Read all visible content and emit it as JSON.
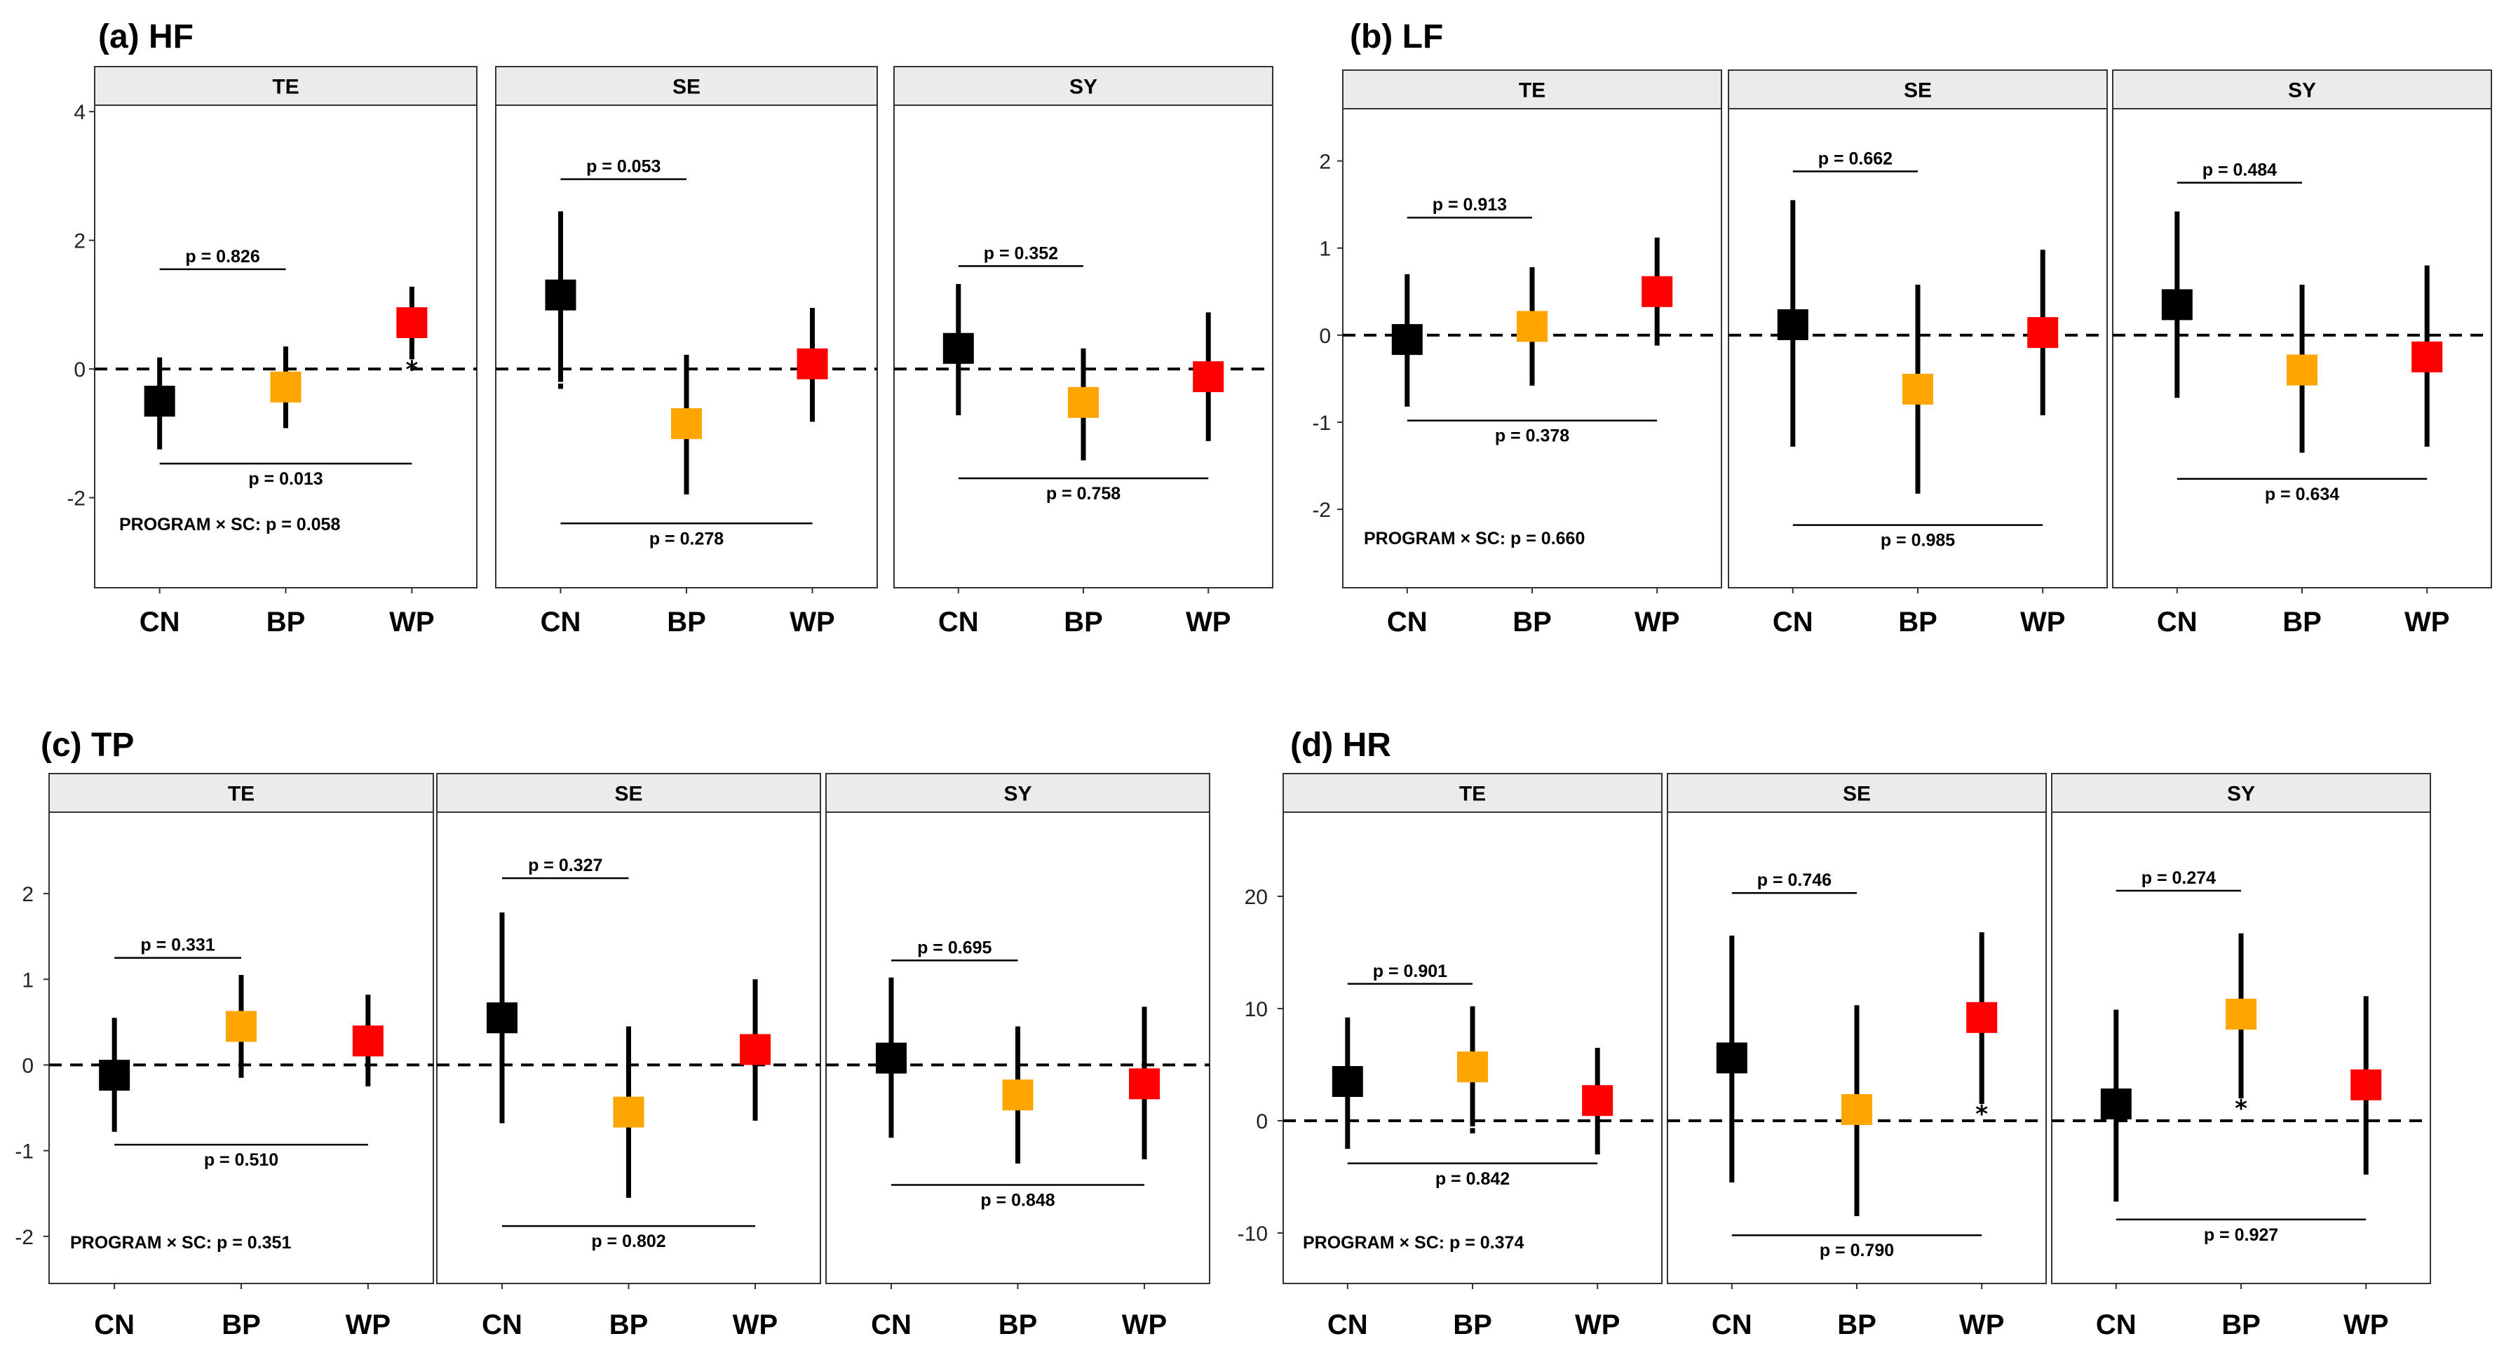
{
  "colors": {
    "CN": "#000000",
    "BP": "#FFA500",
    "WP": "#FF0000",
    "strip_bg": "#EBEBEB",
    "frame": "#333333",
    "zero_line": "#000000"
  },
  "chart_data": [
    {
      "type": "scatter",
      "label": "(a) HF",
      "categories": [
        "CN",
        "BP",
        "WP"
      ],
      "ylim": [
        -3.4,
        4.1
      ],
      "yticks": [
        -2,
        0,
        2,
        4
      ],
      "tick_labels": [
        "-2",
        "0",
        "2",
        "4"
      ],
      "interaction_text": "PROGRAM × SC: p = 0.058",
      "panels": [
        {
          "title": "TE",
          "groups": [
            {
              "name": "CN",
              "mean": -0.5,
              "lower": -1.25,
              "upper": 0.18,
              "marker": ""
            },
            {
              "name": "BP",
              "mean": -0.28,
              "lower": -0.92,
              "upper": 0.35,
              "marker": ""
            },
            {
              "name": "WP",
              "mean": 0.72,
              "lower": 0.15,
              "upper": 1.28,
              "marker": "*"
            }
          ],
          "top_bracket": {
            "value": 1.55,
            "text": "p = 0.826"
          },
          "bottom_bracket": {
            "value": -1.47,
            "text": "p = 0.013"
          }
        },
        {
          "title": "SE",
          "groups": [
            {
              "name": "CN",
              "mean": 1.15,
              "lower": -0.2,
              "upper": 2.45,
              "marker": "·"
            },
            {
              "name": "BP",
              "mean": -0.85,
              "lower": -1.95,
              "upper": 0.22,
              "marker": ""
            },
            {
              "name": "WP",
              "mean": 0.08,
              "lower": -0.82,
              "upper": 0.95,
              "marker": ""
            }
          ],
          "top_bracket": {
            "value": 2.95,
            "text": "p = 0.053"
          },
          "bottom_bracket": {
            "value": -2.4,
            "text": "p = 0.278"
          }
        },
        {
          "title": "SY",
          "groups": [
            {
              "name": "CN",
              "mean": 0.32,
              "lower": -0.72,
              "upper": 1.32,
              "marker": ""
            },
            {
              "name": "BP",
              "mean": -0.52,
              "lower": -1.42,
              "upper": 0.32,
              "marker": ""
            },
            {
              "name": "WP",
              "mean": -0.12,
              "lower": -1.12,
              "upper": 0.88,
              "marker": ""
            }
          ],
          "top_bracket": {
            "value": 1.6,
            "text": "p = 0.352"
          },
          "bottom_bracket": {
            "value": -1.7,
            "text": "p = 0.758"
          }
        }
      ]
    },
    {
      "type": "scatter",
      "label": "(b) LF",
      "categories": [
        "CN",
        "BP",
        "WP"
      ],
      "ylim": [
        -2.9,
        2.6
      ],
      "yticks": [
        -2,
        -1,
        0,
        1,
        2
      ],
      "tick_labels": [
        "-2",
        "-1",
        "0",
        "1",
        "2"
      ],
      "interaction_text": "PROGRAM × SC: p = 0.660",
      "panels": [
        {
          "title": "TE",
          "groups": [
            {
              "name": "CN",
              "mean": -0.05,
              "lower": -0.82,
              "upper": 0.7,
              "marker": ""
            },
            {
              "name": "BP",
              "mean": 0.1,
              "lower": -0.58,
              "upper": 0.78,
              "marker": ""
            },
            {
              "name": "WP",
              "mean": 0.5,
              "lower": -0.12,
              "upper": 1.12,
              "marker": ""
            }
          ],
          "top_bracket": {
            "value": 1.35,
            "text": "p = 0.913"
          },
          "bottom_bracket": {
            "value": -0.98,
            "text": "p = 0.378"
          }
        },
        {
          "title": "SE",
          "groups": [
            {
              "name": "CN",
              "mean": 0.12,
              "lower": -1.28,
              "upper": 1.55,
              "marker": ""
            },
            {
              "name": "BP",
              "mean": -0.62,
              "lower": -1.82,
              "upper": 0.58,
              "marker": ""
            },
            {
              "name": "WP",
              "mean": 0.03,
              "lower": -0.92,
              "upper": 0.98,
              "marker": ""
            }
          ],
          "top_bracket": {
            "value": 1.88,
            "text": "p = 0.662"
          },
          "bottom_bracket": {
            "value": -2.18,
            "text": "p = 0.985"
          }
        },
        {
          "title": "SY",
          "groups": [
            {
              "name": "CN",
              "mean": 0.35,
              "lower": -0.72,
              "upper": 1.42,
              "marker": ""
            },
            {
              "name": "BP",
              "mean": -0.4,
              "lower": -1.35,
              "upper": 0.58,
              "marker": ""
            },
            {
              "name": "WP",
              "mean": -0.25,
              "lower": -1.28,
              "upper": 0.8,
              "marker": ""
            }
          ],
          "top_bracket": {
            "value": 1.75,
            "text": "p = 0.484"
          },
          "bottom_bracket": {
            "value": -1.65,
            "text": "p = 0.634"
          }
        }
      ]
    },
    {
      "type": "scatter",
      "label": "(c) TP",
      "categories": [
        "CN",
        "BP",
        "WP"
      ],
      "ylim": [
        -2.55,
        2.95
      ],
      "yticks": [
        -2,
        -1,
        0,
        1,
        2
      ],
      "tick_labels": [
        "-2",
        "-1",
        "0",
        "1",
        "2"
      ],
      "interaction_text": "PROGRAM × SC: p = 0.351",
      "panels": [
        {
          "title": "TE",
          "groups": [
            {
              "name": "CN",
              "mean": -0.12,
              "lower": -0.78,
              "upper": 0.55,
              "marker": ""
            },
            {
              "name": "BP",
              "mean": 0.45,
              "lower": -0.15,
              "upper": 1.05,
              "marker": ""
            },
            {
              "name": "WP",
              "mean": 0.28,
              "lower": -0.25,
              "upper": 0.82,
              "marker": ""
            }
          ],
          "top_bracket": {
            "value": 1.25,
            "text": "p = 0.331"
          },
          "bottom_bracket": {
            "value": -0.93,
            "text": "p = 0.510"
          }
        },
        {
          "title": "SE",
          "groups": [
            {
              "name": "CN",
              "mean": 0.55,
              "lower": -0.68,
              "upper": 1.78,
              "marker": ""
            },
            {
              "name": "BP",
              "mean": -0.55,
              "lower": -1.55,
              "upper": 0.45,
              "marker": ""
            },
            {
              "name": "WP",
              "mean": 0.18,
              "lower": -0.65,
              "upper": 1.0,
              "marker": ""
            }
          ],
          "top_bracket": {
            "value": 2.18,
            "text": "p = 0.327"
          },
          "bottom_bracket": {
            "value": -1.88,
            "text": "p = 0.802"
          }
        },
        {
          "title": "SY",
          "groups": [
            {
              "name": "CN",
              "mean": 0.08,
              "lower": -0.85,
              "upper": 1.02,
              "marker": ""
            },
            {
              "name": "BP",
              "mean": -0.35,
              "lower": -1.15,
              "upper": 0.45,
              "marker": ""
            },
            {
              "name": "WP",
              "mean": -0.22,
              "lower": -1.1,
              "upper": 0.68,
              "marker": ""
            }
          ],
          "top_bracket": {
            "value": 1.22,
            "text": "p = 0.695"
          },
          "bottom_bracket": {
            "value": -1.4,
            "text": "p = 0.848"
          }
        }
      ]
    },
    {
      "type": "scatter",
      "label": "(d) HR",
      "categories": [
        "CN",
        "BP",
        "WP"
      ],
      "ylim": [
        -14.5,
        27.5
      ],
      "yticks": [
        -10,
        0,
        10,
        20
      ],
      "tick_labels": [
        "-10",
        "0",
        "10",
        "20"
      ],
      "interaction_text": "PROGRAM × SC: p = 0.374",
      "panels": [
        {
          "title": "TE",
          "groups": [
            {
              "name": "CN",
              "mean": 3.5,
              "lower": -2.5,
              "upper": 9.2,
              "marker": ""
            },
            {
              "name": "BP",
              "mean": 4.8,
              "lower": -0.5,
              "upper": 10.2,
              "marker": "·"
            },
            {
              "name": "WP",
              "mean": 1.8,
              "lower": -3.0,
              "upper": 6.5,
              "marker": ""
            }
          ],
          "top_bracket": {
            "value": 12.2,
            "text": "p = 0.901"
          },
          "bottom_bracket": {
            "value": -3.8,
            "text": "p = 0.842"
          }
        },
        {
          "title": "SE",
          "groups": [
            {
              "name": "CN",
              "mean": 5.6,
              "lower": -5.5,
              "upper": 16.5,
              "marker": ""
            },
            {
              "name": "BP",
              "mean": 1.0,
              "lower": -8.5,
              "upper": 10.3,
              "marker": ""
            },
            {
              "name": "WP",
              "mean": 9.2,
              "lower": 1.5,
              "upper": 16.8,
              "marker": "*"
            }
          ],
          "top_bracket": {
            "value": 20.3,
            "text": "p = 0.746"
          },
          "bottom_bracket": {
            "value": -10.2,
            "text": "p = 0.790"
          }
        },
        {
          "title": "SY",
          "groups": [
            {
              "name": "CN",
              "mean": 1.5,
              "lower": -7.2,
              "upper": 9.9,
              "marker": ""
            },
            {
              "name": "BP",
              "mean": 9.5,
              "lower": 2.0,
              "upper": 16.7,
              "marker": "*"
            },
            {
              "name": "WP",
              "mean": 3.2,
              "lower": -4.8,
              "upper": 11.1,
              "marker": ""
            }
          ],
          "top_bracket": {
            "value": 20.5,
            "text": "p = 0.274"
          },
          "bottom_bracket": {
            "value": -8.8,
            "text": "p = 0.927"
          }
        }
      ]
    }
  ]
}
